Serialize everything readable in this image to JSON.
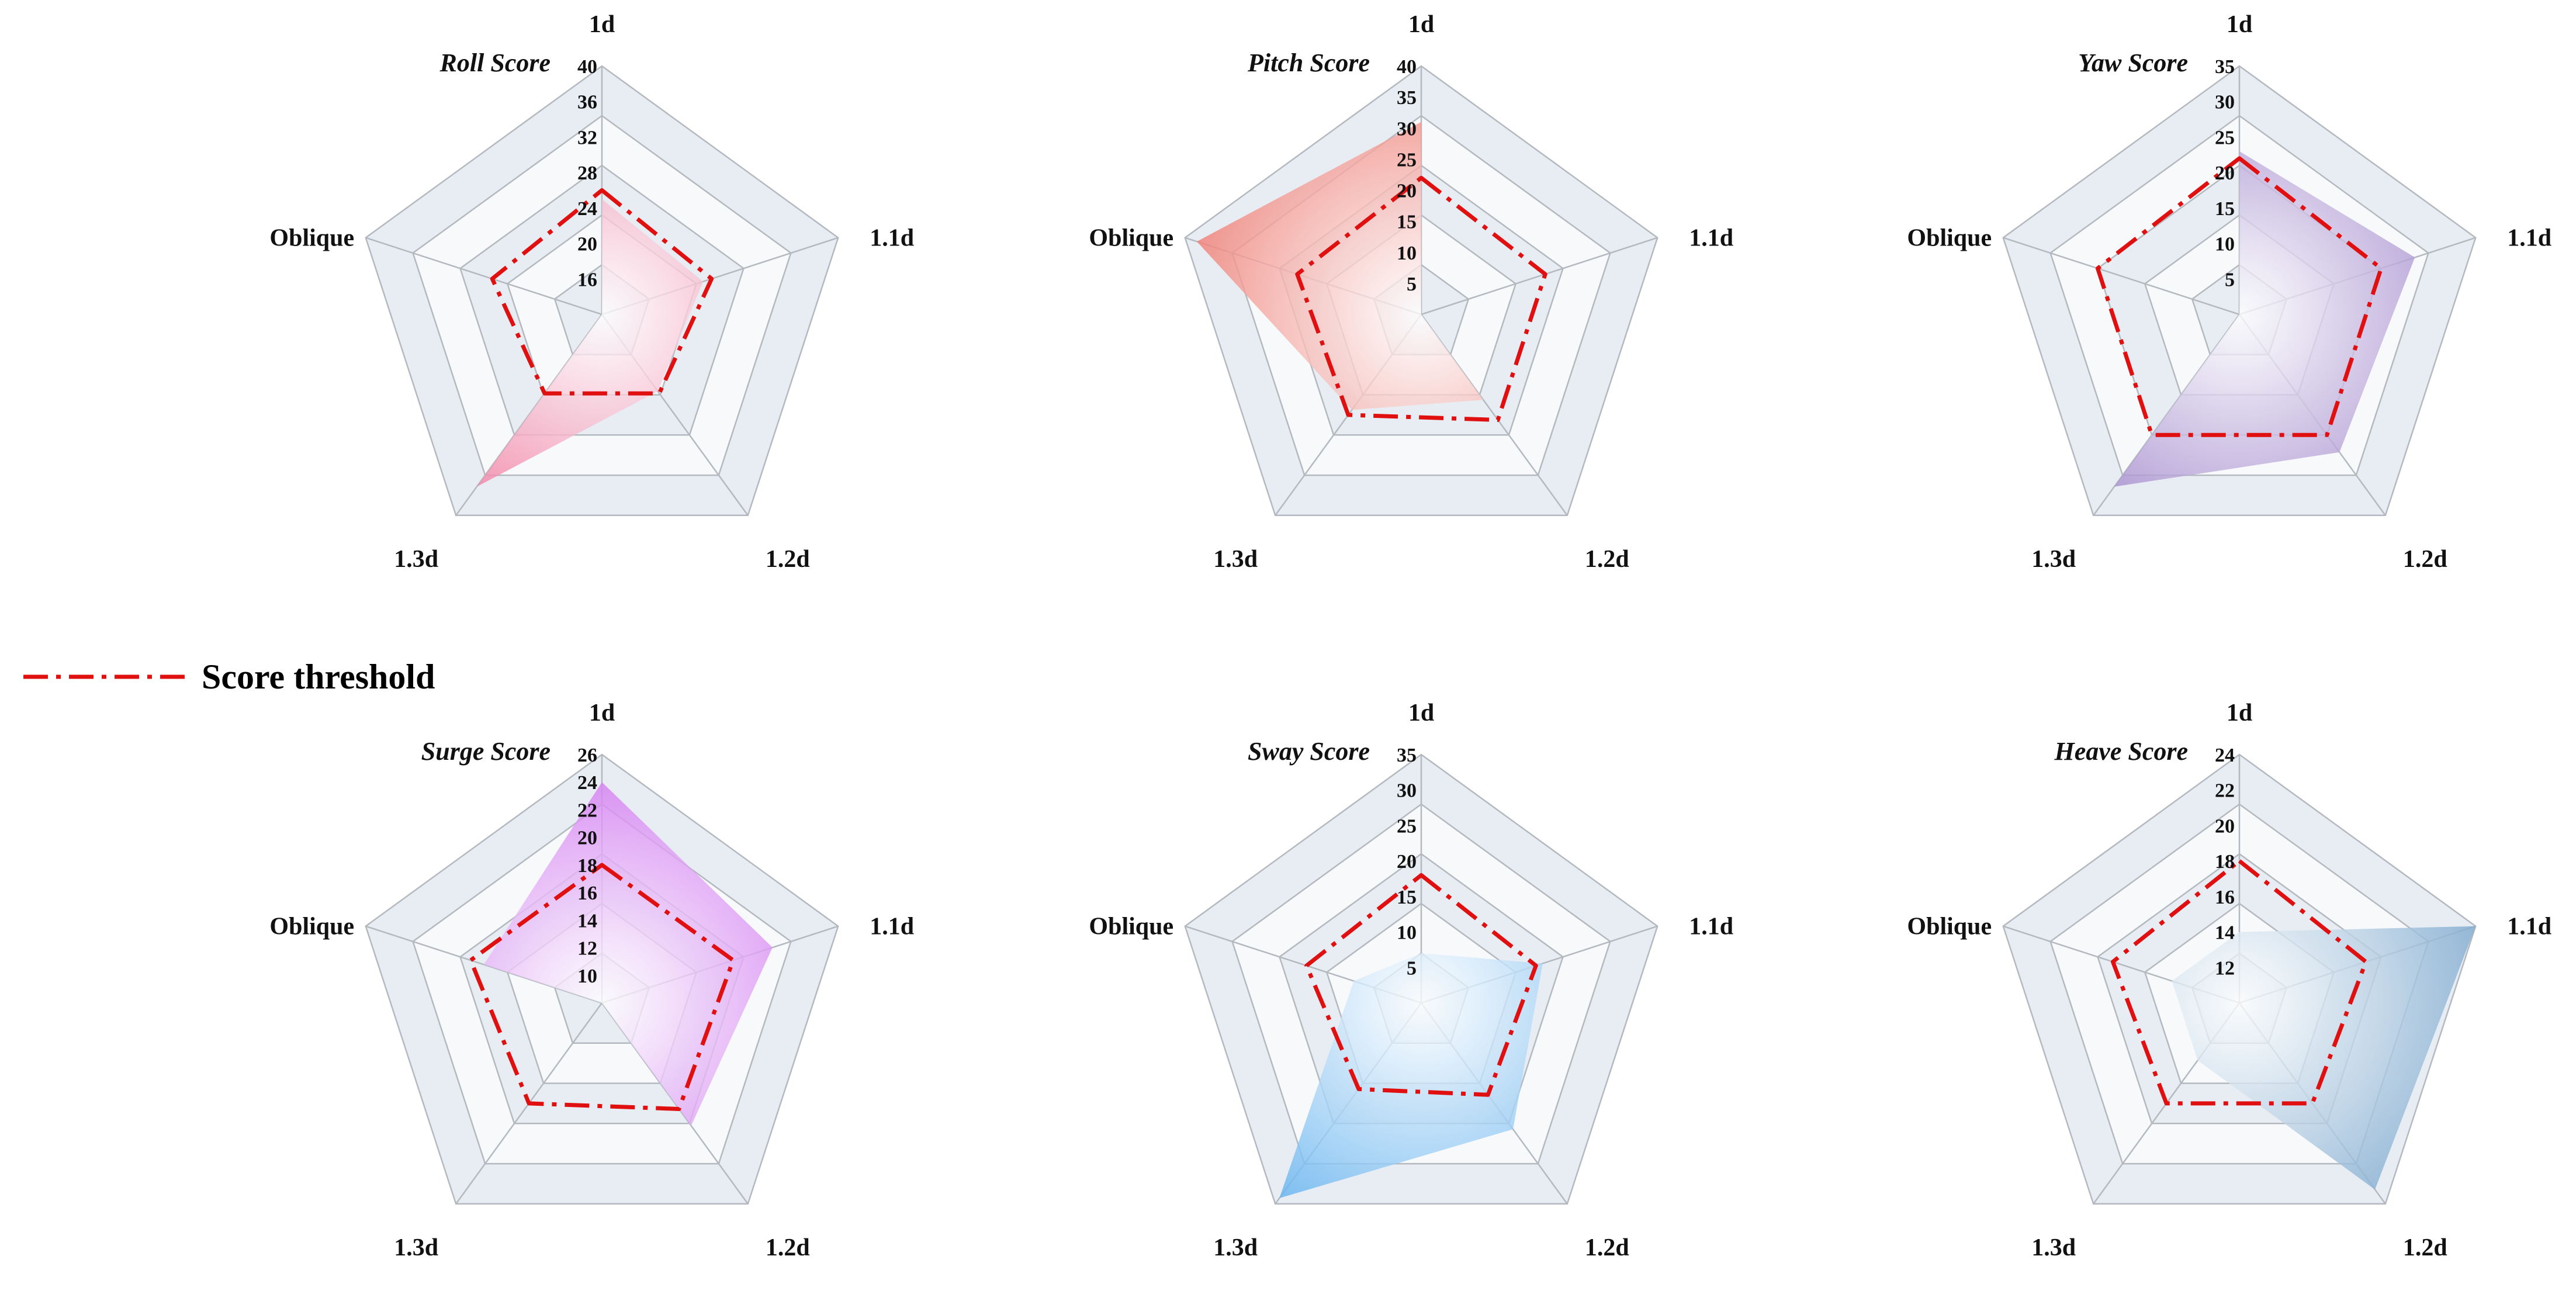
{
  "colors": {
    "threshold": "#e01010",
    "ring": "#b4b9c0",
    "band_light": "#f7f9fb",
    "band_dark": "#e8edf3"
  },
  "legend": {
    "label": "Score threshold"
  },
  "chart_data": [
    {
      "type": "radar",
      "title": "Roll Score",
      "axes": [
        "1d",
        "1.1d",
        "1.2d",
        "1.3d",
        "Oblique"
      ],
      "ticks": [
        "16",
        "20",
        "24",
        "28",
        "32",
        "36",
        "40"
      ],
      "range": [
        12,
        40
      ],
      "series": [
        {
          "name": "Roll Score",
          "values": [
            25,
            24,
            22.7,
            36,
            12
          ],
          "color": "#f07098"
        },
        {
          "name": "Score threshold",
          "values": [
            26,
            25,
            23,
            23,
            25
          ]
        }
      ]
    },
    {
      "type": "radar",
      "title": "Pitch Score",
      "axes": [
        "1d",
        "1.1d",
        "1.2d",
        "1.3d",
        "Oblique"
      ],
      "ticks": [
        "5",
        "10",
        "15",
        "20",
        "25",
        "30",
        "35",
        "40"
      ],
      "range": [
        0,
        40
      ],
      "series": [
        {
          "name": "Pitch Score",
          "values": [
            31,
            0,
            17,
            19,
            38
          ],
          "color": "#f07a70"
        },
        {
          "name": "Score threshold",
          "values": [
            22,
            21,
            21,
            20,
            21
          ]
        }
      ]
    },
    {
      "type": "radar",
      "title": "Yaw Score",
      "axes": [
        "1d",
        "1.1d",
        "1.2d",
        "1.3d",
        "Oblique"
      ],
      "ticks": [
        "5",
        "10",
        "15",
        "20",
        "25",
        "30",
        "35"
      ],
      "range": [
        0,
        35
      ],
      "series": [
        {
          "name": "Yaw Score",
          "values": [
            23,
            26,
            24,
            30,
            0
          ],
          "color": "#9b7ec8"
        },
        {
          "name": "Score threshold",
          "values": [
            22,
            21,
            21,
            21,
            21
          ]
        }
      ]
    },
    {
      "type": "radar",
      "title": "Surge Score",
      "axes": [
        "1d",
        "1.1d",
        "1.2d",
        "1.3d",
        "Oblique"
      ],
      "ticks": [
        "10",
        "12",
        "14",
        "16",
        "18",
        "20",
        "22",
        "24",
        "26"
      ],
      "range": [
        8,
        26
      ],
      "series": [
        {
          "name": "Surge Score",
          "values": [
            24,
            21,
            19,
            8,
            17
          ],
          "color": "#d070f0"
        },
        {
          "name": "Score threshold",
          "values": [
            18,
            18,
            17.5,
            17,
            18
          ]
        }
      ]
    },
    {
      "type": "radar",
      "title": "Sway Score",
      "axes": [
        "1d",
        "1.1d",
        "1.2d",
        "1.3d",
        "Oblique"
      ],
      "ticks": [
        "5",
        "10",
        "15",
        "20",
        "25",
        "30",
        "35"
      ],
      "range": [
        0,
        35
      ],
      "series": [
        {
          "name": "Sway Score",
          "values": [
            7,
            18,
            22,
            34,
            10
          ],
          "color": "#62b2f0"
        },
        {
          "name": "Score threshold",
          "values": [
            18,
            17,
            16,
            15,
            17
          ]
        }
      ]
    },
    {
      "type": "radar",
      "title": "Heave Score",
      "axes": [
        "1d",
        "1.1d",
        "1.2d",
        "1.3d",
        "Oblique"
      ],
      "ticks": [
        "12",
        "14",
        "16",
        "18",
        "20",
        "22",
        "24"
      ],
      "range": [
        10,
        24
      ],
      "series": [
        {
          "name": "Heave Score",
          "values": [
            14,
            24,
            23,
            14,
            14
          ],
          "color": "#82acd0"
        },
        {
          "name": "Score threshold",
          "values": [
            18,
            17.5,
            17,
            17,
            17.5
          ]
        }
      ]
    }
  ]
}
